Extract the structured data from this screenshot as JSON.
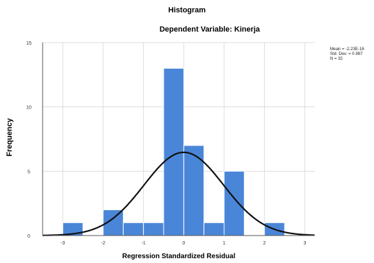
{
  "chart_data": {
    "type": "bar",
    "title": "Histogram",
    "subtitle": "Dependent Variable: Kinerja",
    "xlabel": "Regression Standardized Residual",
    "ylabel": "Frequency",
    "x_ticks": [
      "-3",
      "-2",
      "-1",
      "0",
      "1",
      "2",
      "3"
    ],
    "y_ticks": [
      "0",
      "5",
      "10",
      "15"
    ],
    "xlim": [
      -3.5,
      3.25
    ],
    "ylim": [
      0,
      15
    ],
    "grid": true,
    "bin_width": 0.5,
    "bins": [
      {
        "x0": -3.0,
        "x1": -2.5,
        "count": 1
      },
      {
        "x0": -2.5,
        "x1": -2.0,
        "count": 0
      },
      {
        "x0": -2.0,
        "x1": -1.5,
        "count": 2
      },
      {
        "x0": -1.5,
        "x1": -1.0,
        "count": 1
      },
      {
        "x0": -1.0,
        "x1": -0.5,
        "count": 1
      },
      {
        "x0": -0.5,
        "x1": 0.0,
        "count": 13
      },
      {
        "x0": 0.0,
        "x1": 0.5,
        "count": 7
      },
      {
        "x0": 0.5,
        "x1": 1.0,
        "count": 1
      },
      {
        "x0": 1.0,
        "x1": 1.5,
        "count": 5
      },
      {
        "x0": 1.5,
        "x1": 2.0,
        "count": 0
      },
      {
        "x0": 2.0,
        "x1": 2.5,
        "count": 1
      }
    ],
    "normal_curve": {
      "mean": 0,
      "sd": 0.987,
      "n": 32
    },
    "stats": [
      "Mean = -2.23E-16",
      "Std. Dev. = 0.987",
      "N = 32"
    ],
    "bar_color": "#4a86d8",
    "bar_edge_color": "#ffffff",
    "curve_color": "#111111",
    "grid_color": "#dcdcdc"
  }
}
